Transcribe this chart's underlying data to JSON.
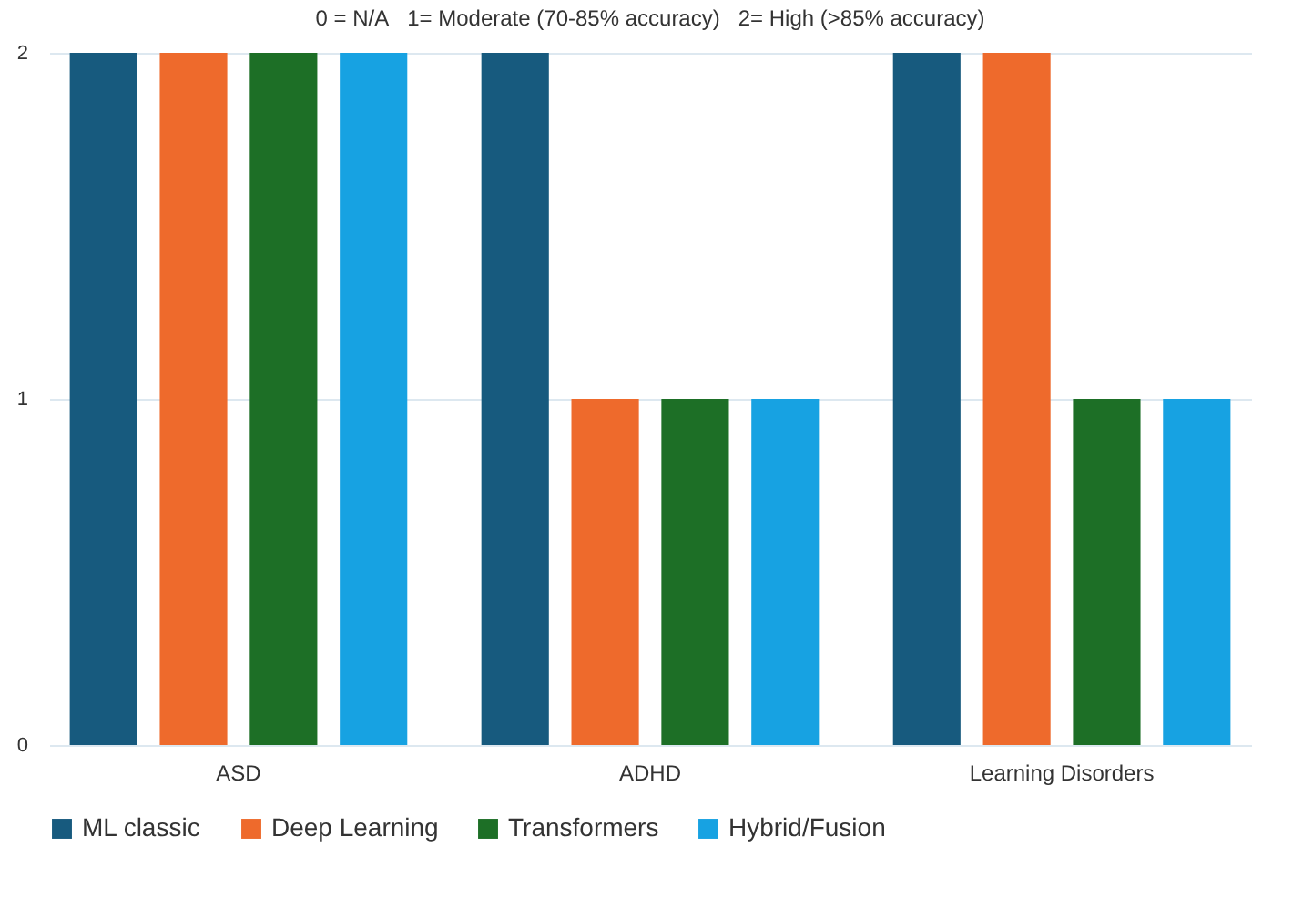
{
  "chart_data": {
    "type": "bar",
    "title": "0 = N/A   1= Moderate (70-85% accuracy)   2= High (>85% accuracy)",
    "categories": [
      "ASD",
      "ADHD",
      "Learning Disorders"
    ],
    "series": [
      {
        "name": "ML classic",
        "color": "#175a7e",
        "values": [
          2,
          2,
          2
        ]
      },
      {
        "name": "Deep Learning",
        "color": "#ee6a2c",
        "values": [
          2,
          1,
          2
        ]
      },
      {
        "name": "Transformers",
        "color": "#1d6f26",
        "values": [
          2,
          1,
          1
        ]
      },
      {
        "name": "Hybrid/Fusion",
        "color": "#17a2e2",
        "values": [
          2,
          1,
          1
        ]
      }
    ],
    "ylim": [
      0,
      2
    ],
    "yticks": [
      0,
      1,
      2
    ],
    "grid": "y",
    "legend": "bottom"
  }
}
